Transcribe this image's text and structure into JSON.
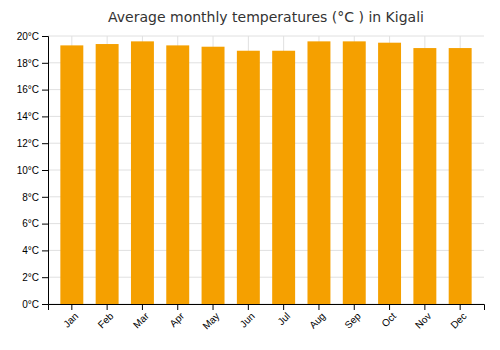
{
  "chart_data": {
    "type": "bar",
    "title": "Average monthly temperatures (°C ) in Kigali",
    "categories": [
      "Jan",
      "Feb",
      "Mar",
      "Apr",
      "May",
      "Jun",
      "Jul",
      "Aug",
      "Sep",
      "Oct",
      "Nov",
      "Dec"
    ],
    "values": [
      19.3,
      19.4,
      19.6,
      19.3,
      19.2,
      18.9,
      18.9,
      19.6,
      19.6,
      19.5,
      19.1,
      19.1
    ],
    "color": "#F5A000",
    "ylim": [
      0,
      20
    ],
    "yticks": [
      {
        "value": 0,
        "label": "0°C"
      },
      {
        "value": 2,
        "label": "2°C"
      },
      {
        "value": 4,
        "label": "4°C"
      },
      {
        "value": 6,
        "label": "6°C"
      },
      {
        "value": 8,
        "label": "8°C"
      },
      {
        "value": 10,
        "label": "10°C"
      },
      {
        "value": 12,
        "label": "12°C"
      },
      {
        "value": 14,
        "label": "14°C"
      },
      {
        "value": 16,
        "label": "16°C"
      },
      {
        "value": 18,
        "label": "18°C"
      },
      {
        "value": 20,
        "label": "20°C"
      }
    ],
    "grid": true
  }
}
